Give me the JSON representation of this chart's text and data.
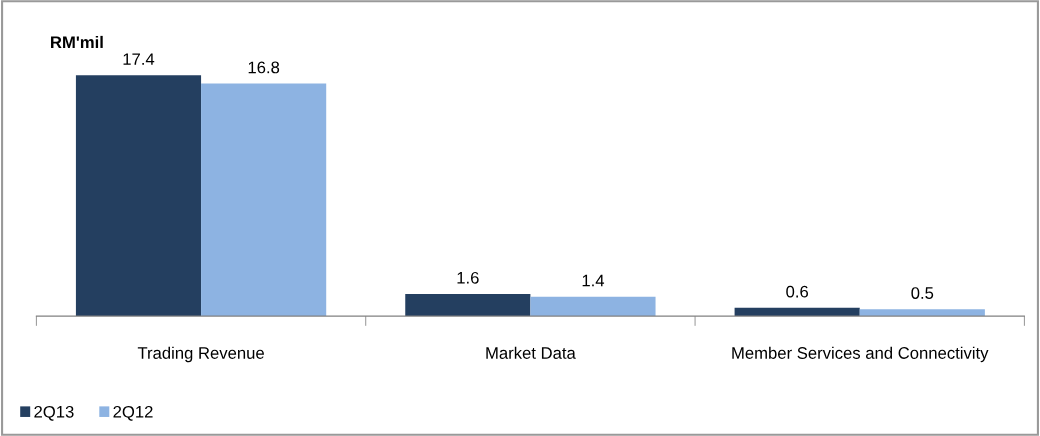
{
  "chart_data": {
    "type": "bar",
    "title": "RM'mil",
    "categories": [
      "Trading Revenue",
      "Market Data",
      "Member Services and Connectivity"
    ],
    "series": [
      {
        "name": "2Q13",
        "color": "#243f60",
        "values": [
          17.4,
          1.6,
          0.6
        ]
      },
      {
        "name": "2Q12",
        "color": "#8db3e2",
        "values": [
          16.8,
          1.4,
          0.5
        ]
      }
    ],
    "data_labels": true,
    "legend": "bottom left",
    "grid": false
  }
}
